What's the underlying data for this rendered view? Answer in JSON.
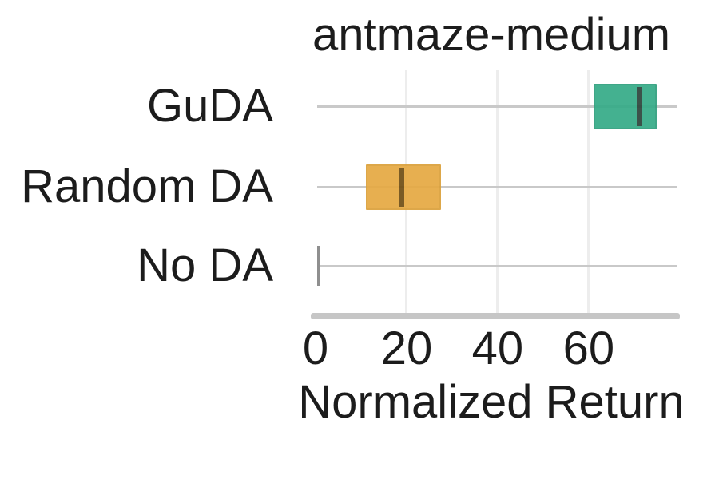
{
  "chart_data": {
    "type": "boxplot",
    "orientation": "horizontal",
    "title": "antmaze-medium",
    "xlabel": "Normalized Return",
    "ylabel": "",
    "categories": [
      "GuDA",
      "Random DA",
      "No DA"
    ],
    "series": [
      {
        "name": "GuDA",
        "q1": 61,
        "median": 71,
        "q3": 75,
        "whisker_low": 61,
        "whisker_high": 75,
        "color": "#35ab87",
        "edge_color": "#2b967592",
        "median_color": "#2c443b"
      },
      {
        "name": "Random DA",
        "q1": 11,
        "median": 19,
        "q3": 27.5,
        "whisker_low": 11,
        "whisker_high": 27.5,
        "color": "#e6a942",
        "edge_color": "#d39a3492",
        "median_color": "#6f4e13"
      },
      {
        "name": "No DA",
        "q1": 0.5,
        "median": 0.5,
        "q3": 0.5,
        "whisker_low": 0.5,
        "whisker_high": 0.5,
        "color": "#8f8f8f",
        "edge_color": "#8f8f8f",
        "median_color": "#8f8f8f"
      }
    ],
    "x_ticks": [
      0,
      20,
      40,
      60
    ],
    "xlim": [
      0,
      79.5
    ],
    "grid": {
      "horizontal": true,
      "vertical": true
    },
    "legend": false
  },
  "colors": {
    "background": "#ffffff",
    "h_gridline": "#c9c9c9",
    "v_gridline": "#ededed",
    "axis_spine": "#c6c6c6",
    "text": "#1c1c1c"
  }
}
